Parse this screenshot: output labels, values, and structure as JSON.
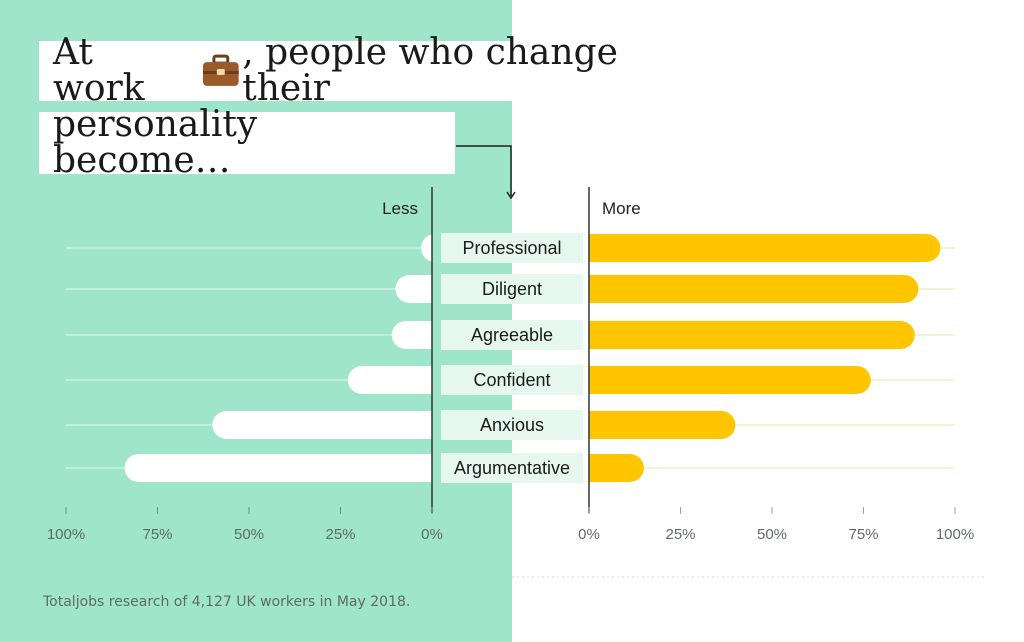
{
  "title": {
    "line1_before": "At work",
    "line1_after": ", people who change their",
    "line2": "personality become…",
    "icon": "briefcase-icon"
  },
  "footnote": "Totaljobs research of 4,127 UK workers in May 2018.",
  "colors": {
    "mint_background": "#9fe5cb",
    "more_bar": "#ffc600",
    "less_bar": "#ffffff",
    "label_box": "#e6f7f0",
    "axis": "#333333",
    "tick_text": "#5f6b66"
  },
  "chart_data": {
    "type": "bar",
    "side_labels": {
      "left": "Less",
      "right": "More"
    },
    "categories": [
      "Professional",
      "Diligent",
      "Agreeable",
      "Confident",
      "Anxious",
      "Argumentative"
    ],
    "series": [
      {
        "name": "Less",
        "values": [
          3,
          10,
          11,
          23,
          60,
          84
        ]
      },
      {
        "name": "More",
        "values": [
          96,
          90,
          89,
          77,
          40,
          15
        ]
      }
    ],
    "xlim": [
      0,
      100
    ],
    "ticks": [
      "0%",
      "25%",
      "50%",
      "75%",
      "100%"
    ],
    "left_ticks": [
      "100%",
      "75%",
      "50%",
      "25%",
      "0%"
    ],
    "grid": true
  }
}
